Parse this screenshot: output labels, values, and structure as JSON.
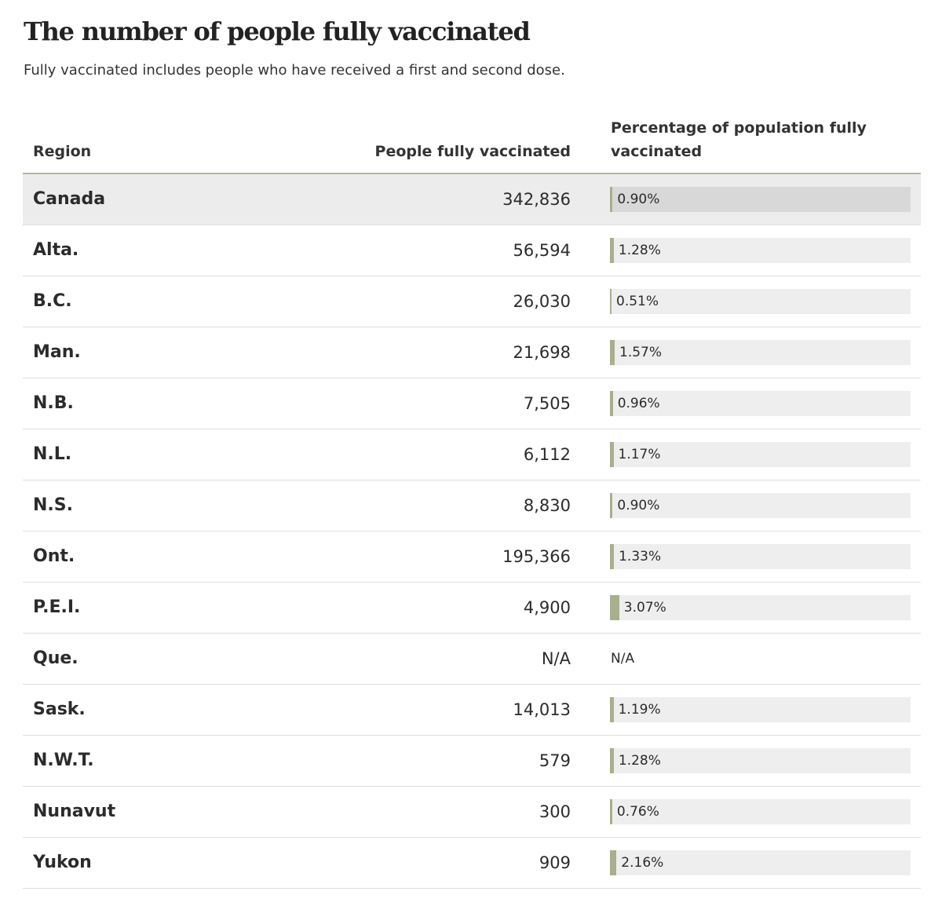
{
  "title": "The number of people fully vaccinated",
  "subtitle": "Fully vaccinated includes people who have received a first and second dose.",
  "colors": {
    "bar": "#a8af8c",
    "track": "#eeeeee",
    "highlight_row": "#ececec",
    "header_rule": "#b4b69c"
  },
  "chart_data": {
    "type": "table",
    "columns": [
      "Region",
      "People fully vaccinated",
      "Percentage of population fully vaccinated"
    ],
    "rows": [
      {
        "region": "Canada",
        "count": "342,836",
        "pct": 0.9,
        "pct_label": "0.90%",
        "highlight": true
      },
      {
        "region": "Alta.",
        "count": "56,594",
        "pct": 1.28,
        "pct_label": "1.28%"
      },
      {
        "region": "B.C.",
        "count": "26,030",
        "pct": 0.51,
        "pct_label": "0.51%"
      },
      {
        "region": "Man.",
        "count": "21,698",
        "pct": 1.57,
        "pct_label": "1.57%"
      },
      {
        "region": "N.B.",
        "count": "7,505",
        "pct": 0.96,
        "pct_label": "0.96%"
      },
      {
        "region": "N.L.",
        "count": "6,112",
        "pct": 1.17,
        "pct_label": "1.17%"
      },
      {
        "region": "N.S.",
        "count": "8,830",
        "pct": 0.9,
        "pct_label": "0.90%"
      },
      {
        "region": "Ont.",
        "count": "195,366",
        "pct": 1.33,
        "pct_label": "1.33%"
      },
      {
        "region": "P.E.I.",
        "count": "4,900",
        "pct": 3.07,
        "pct_label": "3.07%"
      },
      {
        "region": "Que.",
        "count": "N/A",
        "pct": null,
        "pct_label": "N/A"
      },
      {
        "region": "Sask.",
        "count": "14,013",
        "pct": 1.19,
        "pct_label": "1.19%"
      },
      {
        "region": "N.W.T.",
        "count": "579",
        "pct": 1.28,
        "pct_label": "1.28%"
      },
      {
        "region": "Nunavut",
        "count": "300",
        "pct": 0.76,
        "pct_label": "0.76%"
      },
      {
        "region": "Yukon",
        "count": "909",
        "pct": 2.16,
        "pct_label": "2.16%"
      }
    ],
    "pct_axis_max": 100
  }
}
